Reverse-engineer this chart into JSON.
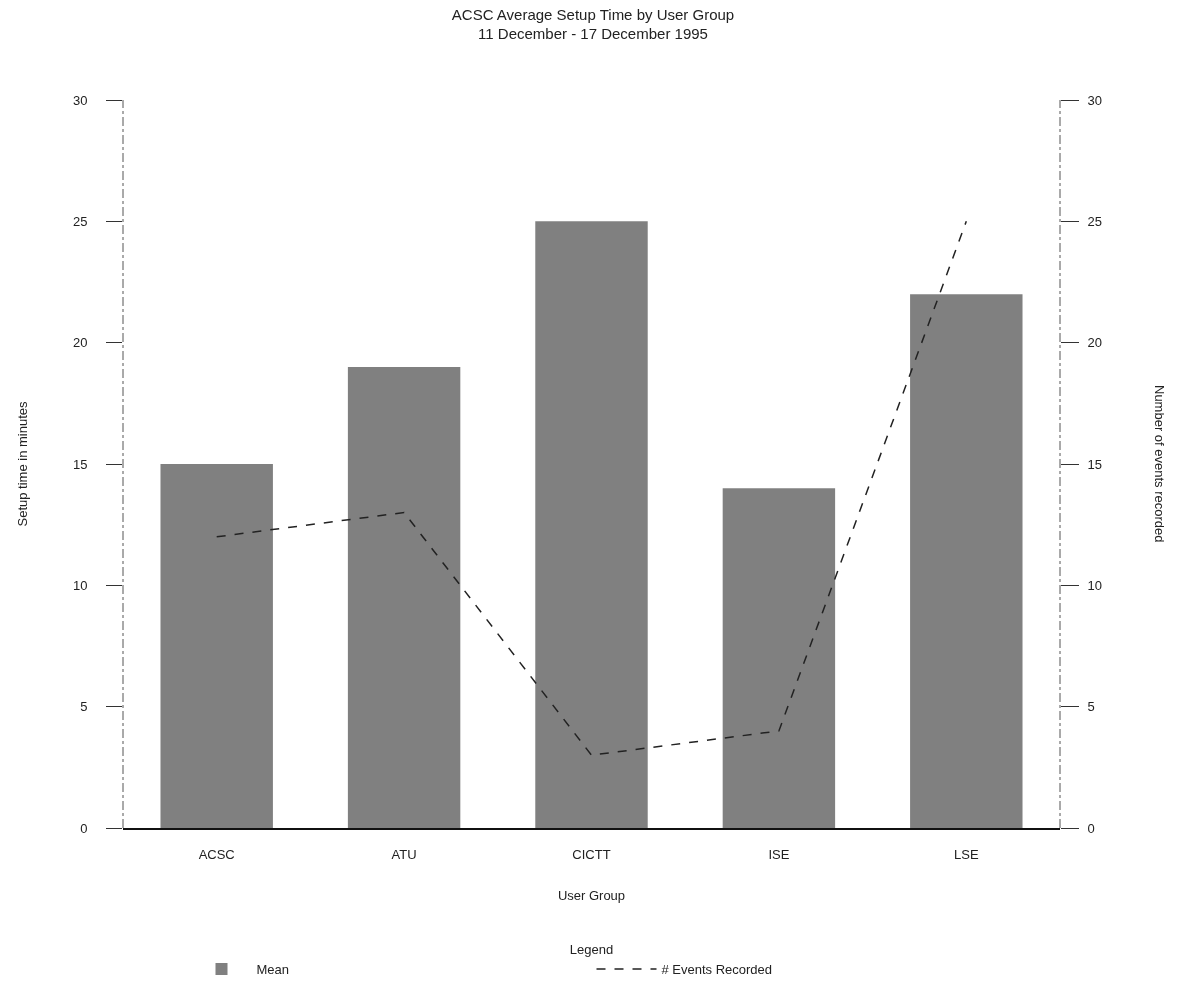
{
  "chart_data": {
    "type": "bar",
    "title": "ACSC Average Setup Time by User Group",
    "subtitle": "11 December - 17 December 1995",
    "xlabel": "User Group",
    "ylabel": "Setup time in minutes",
    "y2label": "Number of events recorded",
    "legend_title": "Legend",
    "categories": [
      "ACSC",
      "ATU",
      "CICTT",
      "ISE",
      "LSE"
    ],
    "series": [
      {
        "name": "Mean",
        "color": "#808080",
        "values": [
          15,
          19,
          25,
          14,
          22
        ]
      },
      {
        "name": "# Events Recorded",
        "type": "line",
        "axis": "y2",
        "color": "#222222",
        "values": [
          12,
          13,
          3,
          4,
          25
        ]
      }
    ],
    "ylim": [
      0,
      30
    ],
    "yticks": [
      0,
      5,
      10,
      15,
      20,
      25,
      30
    ],
    "y2lim": [
      0,
      30
    ],
    "y2ticks": [
      0,
      5,
      10,
      15,
      20,
      25,
      30
    ],
    "grid": false,
    "legend": "bottom",
    "line_style": "dashed"
  }
}
